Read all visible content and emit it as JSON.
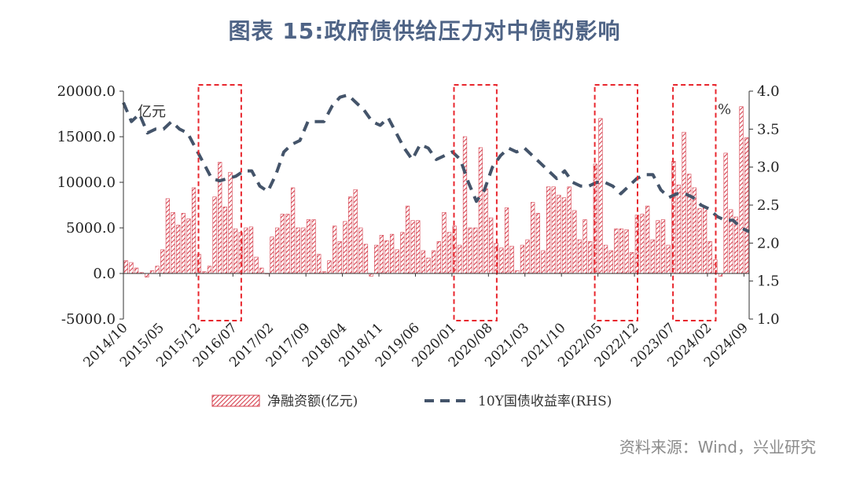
{
  "title": "图表 15:政府债供给压力对中债的影响",
  "source": "资料来源：Wind，兴业研究",
  "chart_data": {
    "type": "bar+line",
    "left_unit_label": "亿元",
    "right_unit_label": "%",
    "y_left": {
      "min": -5000,
      "max": 20000,
      "ticks": [
        "-5000.0",
        "0.0",
        "5000.0",
        "10000.0",
        "15000.0",
        "20000.0"
      ],
      "tick_values": [
        -5000,
        0,
        5000,
        10000,
        15000,
        20000
      ]
    },
    "y_right": {
      "min": 1.0,
      "max": 4.0,
      "ticks": [
        "1.0",
        "1.5",
        "2.0",
        "2.5",
        "3.0",
        "3.5",
        "4.0"
      ],
      "tick_values": [
        1.0,
        1.5,
        2.0,
        2.5,
        3.0,
        3.5,
        4.0
      ]
    },
    "x_start": "2014/10",
    "x_end": "2024/09",
    "x_tick_labels": [
      "2014/10",
      "2015/05",
      "2015/12",
      "2016/07",
      "2017/02",
      "2017/09",
      "2018/04",
      "2018/11",
      "2019/06",
      "2020/01",
      "2020/08",
      "2021/03",
      "2021/10",
      "2022/05",
      "2022/12",
      "2023/07",
      "2024/02",
      "2024/09"
    ],
    "series": [
      {
        "name": "净融资额(亿元)",
        "type": "bar",
        "axis": "left",
        "color": "#d6404e",
        "values": [
          1400,
          1200,
          600,
          100,
          -400,
          300,
          800,
          2600,
          8200,
          6700,
          5300,
          6600,
          6000,
          9400,
          2100,
          200,
          800,
          8400,
          12200,
          7300,
          11100,
          4900,
          4500,
          5000,
          5100,
          1800,
          600,
          0,
          4000,
          5000,
          6500,
          6500,
          9400,
          5000,
          5000,
          5900,
          5900,
          2100,
          200,
          1400,
          5200,
          3500,
          5700,
          8400,
          9200,
          5000,
          3200,
          -300,
          3100,
          4200,
          3600,
          4300,
          2600,
          4500,
          7400,
          5800,
          5800,
          2500,
          1700,
          2500,
          3500,
          6700,
          4500,
          5200,
          3100,
          15000,
          5000,
          5000,
          13800,
          9300,
          6100,
          3300,
          2800,
          7200,
          3000,
          300,
          3100,
          3700,
          7800,
          6600,
          2500,
          9500,
          9500,
          8600,
          8300,
          9500,
          6900,
          3700,
          5900,
          3500,
          12000,
          17000,
          3100,
          2500,
          4900,
          4900,
          4800,
          2300,
          6400,
          6500,
          7400,
          3700,
          5800,
          5900,
          3100,
          12300,
          9700,
          15500,
          10900,
          9400,
          7100,
          7200,
          3500,
          1500,
          -300,
          13200,
          7000,
          6200,
          18300,
          14900
        ]
      },
      {
        "name": "10Y国债收益率(RHS)",
        "type": "line",
        "axis": "right",
        "color": "#44546a",
        "values": [
          3.85,
          3.6,
          3.7,
          3.45,
          3.5,
          3.5,
          3.6,
          3.5,
          3.45,
          3.25,
          3.05,
          2.85,
          2.82,
          2.85,
          2.88,
          2.95,
          2.95,
          2.75,
          2.68,
          2.9,
          3.2,
          3.3,
          3.35,
          3.6,
          3.6,
          3.6,
          3.8,
          3.92,
          3.95,
          3.85,
          3.75,
          3.6,
          3.55,
          3.65,
          3.45,
          3.25,
          3.1,
          3.3,
          3.25,
          3.1,
          3.15,
          3.2,
          3.1,
          2.8,
          2.55,
          2.7,
          3.0,
          3.15,
          3.25,
          3.2,
          3.25,
          3.15,
          3.05,
          2.95,
          2.85,
          2.95,
          2.8,
          2.75,
          2.75,
          2.8,
          2.8,
          2.75,
          2.65,
          2.75,
          2.85,
          2.9,
          2.9,
          2.7,
          2.6,
          2.65,
          2.65,
          2.6,
          2.5,
          2.45,
          2.35,
          2.3,
          2.3,
          2.2,
          2.15
        ]
      }
    ],
    "highlight_periods": [
      [
        "2016/01",
        "2016/08"
      ],
      [
        "2020/02",
        "2020/09"
      ],
      [
        "2022/05",
        "2022/12"
      ],
      [
        "2023/08",
        "2024/03"
      ]
    ],
    "legend_position": "bottom",
    "grid": false
  }
}
